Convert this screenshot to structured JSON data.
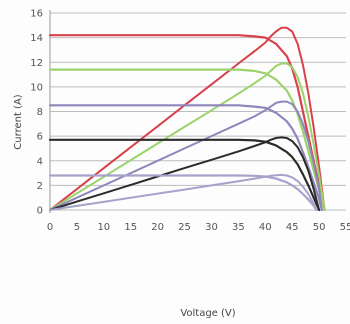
{
  "chart_data": {
    "type": "line",
    "xlabel": "Voltage (V)",
    "ylabel": "Current (A)",
    "xlim": [
      0,
      55
    ],
    "ylim": [
      0,
      16
    ],
    "x_ticks": [
      "0",
      "5",
      "10",
      "15",
      "20",
      "25",
      "30",
      "35",
      "40",
      "45",
      "50",
      "55"
    ],
    "y_ticks": [
      "0",
      "2",
      "4",
      "6",
      "8",
      "10",
      "12",
      "14",
      "16"
    ],
    "grid": "horizontal",
    "legend": "none",
    "colors": {
      "background": "#fdfdfd",
      "grid": "#bdbdbd",
      "axis_text": "#555555"
    },
    "series": [
      {
        "kind": "current",
        "color": "#d8414a",
        "x": [
          0,
          5,
          10,
          15,
          20,
          25,
          30,
          35,
          38,
          40,
          42,
          44,
          45,
          46,
          47,
          48,
          49,
          50,
          51
        ],
        "y": [
          14.2,
          14.2,
          14.2,
          14.2,
          14.2,
          14.2,
          14.2,
          14.2,
          14.1,
          14.0,
          13.5,
          12.5,
          11.5,
          10.0,
          8.0,
          6.0,
          4.0,
          2.0,
          0
        ]
      },
      {
        "kind": "power",
        "color": "#d8414a",
        "x": [
          0,
          5,
          10,
          15,
          20,
          25,
          30,
          35,
          38,
          40,
          41,
          42,
          43,
          44,
          45,
          46,
          47,
          48,
          49,
          50,
          51
        ],
        "y": [
          0,
          1.7,
          3.4,
          5.1,
          6.8,
          8.5,
          10.2,
          11.9,
          12.9,
          13.6,
          14.1,
          14.5,
          14.8,
          14.8,
          14.5,
          13.5,
          11.8,
          9.5,
          6.7,
          3.5,
          0
        ]
      },
      {
        "kind": "current",
        "color": "#9ad36c",
        "x": [
          0,
          5,
          10,
          15,
          20,
          25,
          30,
          35,
          38,
          40,
          42,
          44,
          45,
          46,
          47,
          48,
          49,
          50,
          51
        ],
        "y": [
          11.4,
          11.4,
          11.4,
          11.4,
          11.4,
          11.4,
          11.4,
          11.4,
          11.3,
          11.1,
          10.6,
          9.7,
          8.9,
          7.8,
          6.4,
          4.8,
          3.2,
          1.6,
          0
        ]
      },
      {
        "kind": "power",
        "color": "#9ad36c",
        "x": [
          0,
          5,
          10,
          15,
          20,
          25,
          30,
          35,
          38,
          40,
          41,
          42,
          43,
          44,
          45,
          46,
          47,
          48,
          49,
          50,
          51
        ],
        "y": [
          0,
          1.35,
          2.7,
          4.05,
          5.4,
          6.75,
          8.1,
          9.45,
          10.3,
          10.9,
          11.3,
          11.7,
          11.9,
          11.9,
          11.6,
          10.8,
          9.5,
          7.6,
          5.3,
          2.8,
          0
        ]
      },
      {
        "kind": "current",
        "color": "#8e86ba",
        "x": [
          0,
          5,
          10,
          15,
          20,
          25,
          30,
          35,
          38,
          40,
          42,
          44,
          45,
          46,
          47,
          48,
          49,
          50,
          50.5
        ],
        "y": [
          8.5,
          8.5,
          8.5,
          8.5,
          8.5,
          8.5,
          8.5,
          8.5,
          8.4,
          8.3,
          7.9,
          7.2,
          6.6,
          5.8,
          4.7,
          3.5,
          2.2,
          0.9,
          0
        ]
      },
      {
        "kind": "power",
        "color": "#8e86ba",
        "x": [
          0,
          5,
          10,
          15,
          20,
          25,
          30,
          35,
          38,
          40,
          41,
          42,
          43,
          44,
          45,
          46,
          47,
          48,
          49,
          50,
          50.5
        ],
        "y": [
          0,
          1.0,
          2.0,
          3.0,
          4.0,
          5.0,
          6.0,
          7.0,
          7.6,
          8.1,
          8.4,
          8.7,
          8.8,
          8.8,
          8.6,
          8.0,
          7.0,
          5.6,
          3.8,
          1.7,
          0
        ]
      },
      {
        "kind": "current",
        "color": "#2b2b2b",
        "x": [
          0,
          5,
          10,
          15,
          20,
          25,
          30,
          35,
          38,
          40,
          42,
          44,
          45,
          46,
          47,
          48,
          49,
          50
        ],
        "y": [
          5.7,
          5.7,
          5.7,
          5.7,
          5.7,
          5.7,
          5.7,
          5.7,
          5.65,
          5.55,
          5.25,
          4.7,
          4.3,
          3.7,
          2.9,
          2.0,
          1.0,
          0
        ]
      },
      {
        "kind": "power",
        "color": "#2b2b2b",
        "x": [
          0,
          5,
          10,
          15,
          20,
          25,
          30,
          35,
          38,
          40,
          41,
          42,
          43,
          44,
          45,
          46,
          47,
          48,
          49,
          50
        ],
        "y": [
          0,
          0.68,
          1.36,
          2.04,
          2.72,
          3.4,
          4.08,
          4.76,
          5.2,
          5.5,
          5.7,
          5.85,
          5.9,
          5.85,
          5.6,
          5.1,
          4.3,
          3.2,
          1.7,
          0
        ]
      },
      {
        "kind": "current",
        "color": "#a6a3cb",
        "x": [
          0,
          5,
          10,
          15,
          20,
          25,
          30,
          35,
          38,
          40,
          42,
          44,
          45,
          46,
          47,
          48,
          49,
          49.5
        ],
        "y": [
          2.8,
          2.8,
          2.8,
          2.8,
          2.8,
          2.8,
          2.8,
          2.8,
          2.78,
          2.72,
          2.55,
          2.25,
          2.0,
          1.7,
          1.3,
          0.85,
          0.35,
          0
        ]
      },
      {
        "kind": "power",
        "color": "#a6a3cb",
        "x": [
          0,
          5,
          10,
          15,
          20,
          25,
          30,
          35,
          38,
          40,
          41,
          42,
          43,
          44,
          45,
          46,
          47,
          48,
          49,
          49.5
        ],
        "y": [
          0,
          0.33,
          0.66,
          1.0,
          1.33,
          1.66,
          2.0,
          2.33,
          2.55,
          2.7,
          2.78,
          2.83,
          2.85,
          2.8,
          2.65,
          2.35,
          1.9,
          1.3,
          0.5,
          0
        ]
      }
    ]
  }
}
